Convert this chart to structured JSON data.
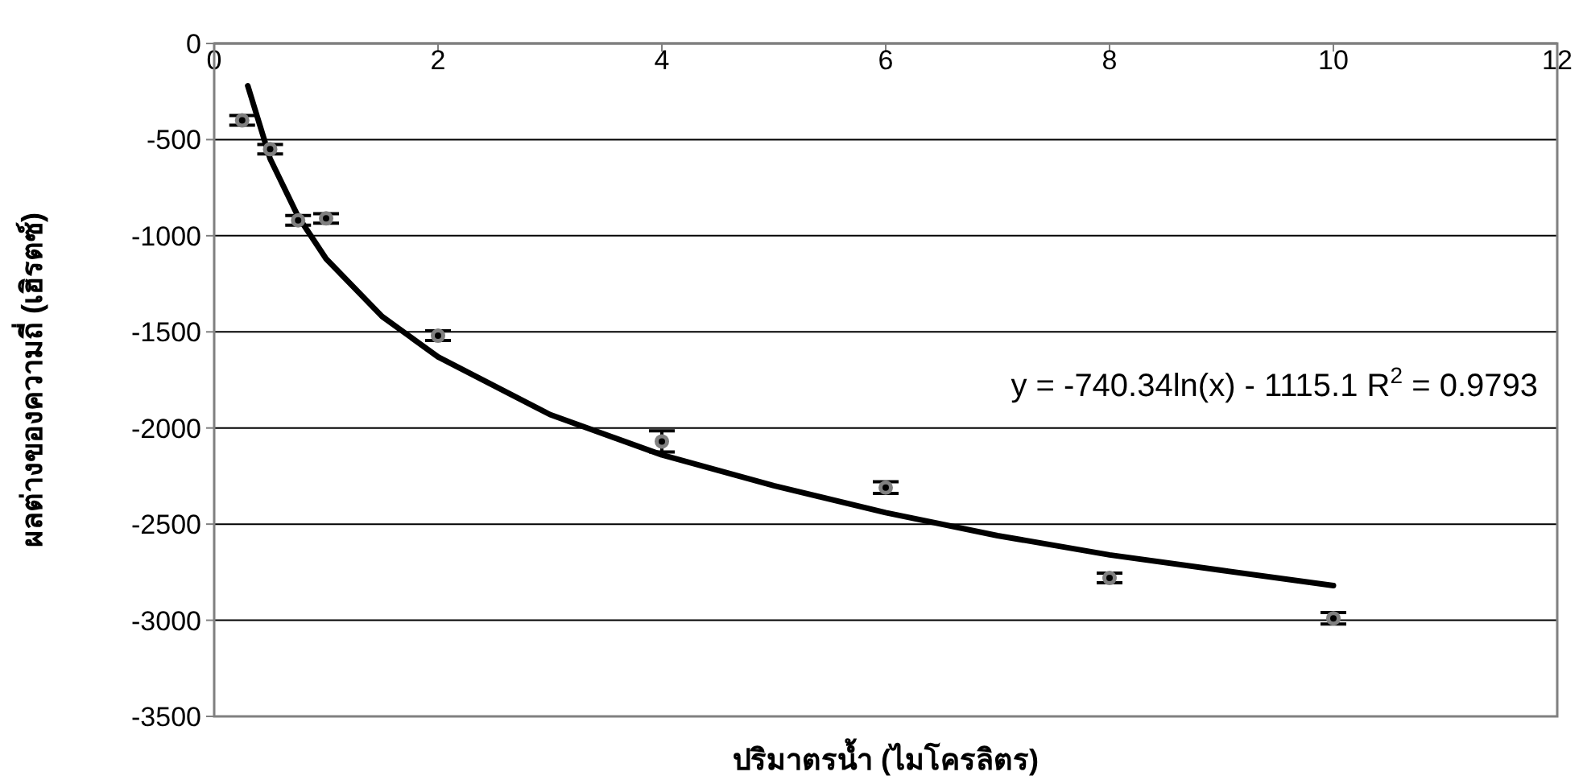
{
  "chart_data": {
    "type": "scatter",
    "xlabel": "ปริมาตรน้ำ (ไมโครลิตร)",
    "ylabel": "ผลต่างของความถี่ (เฮิรตซ์)",
    "xlim": [
      0,
      12
    ],
    "xticks": [
      0,
      2,
      4,
      6,
      8,
      10,
      12
    ],
    "ylim": [
      -3500,
      0
    ],
    "yticks": [
      -3500,
      -3000,
      -2500,
      -2000,
      -1500,
      -1000,
      -500,
      0
    ],
    "grid": "y",
    "annotations": [
      "y = -740.34ln(x) - 1115.1 R$^{2}$ = 0.9793"
    ],
    "series": [
      {
        "color": "#808080",
        "marker": "circle",
        "x": [
          0.25,
          0.5,
          0.75,
          1,
          2,
          4,
          6,
          8,
          10
        ],
        "values": [
          -400,
          -550,
          -920,
          -910,
          -1520,
          -2070,
          -2310,
          -2780,
          -2990
        ],
        "errors": [
          25,
          25,
          25,
          25,
          25,
          55,
          30,
          25,
          30
        ]
      },
      {
        "type": "line",
        "color": "#000000",
        "marker": "none",
        "line_style": "solid",
        "x": [
          0.3,
          0.5,
          0.75,
          1,
          1.5,
          2,
          3,
          4,
          5,
          6,
          7,
          8,
          9,
          10
        ],
        "values": [
          -220,
          -600,
          -900,
          -1120,
          -1420,
          -1630,
          -1930,
          -2140,
          -2300,
          -2440,
          -2560,
          -2660,
          -2740,
          -2820
        ]
      }
    ]
  }
}
